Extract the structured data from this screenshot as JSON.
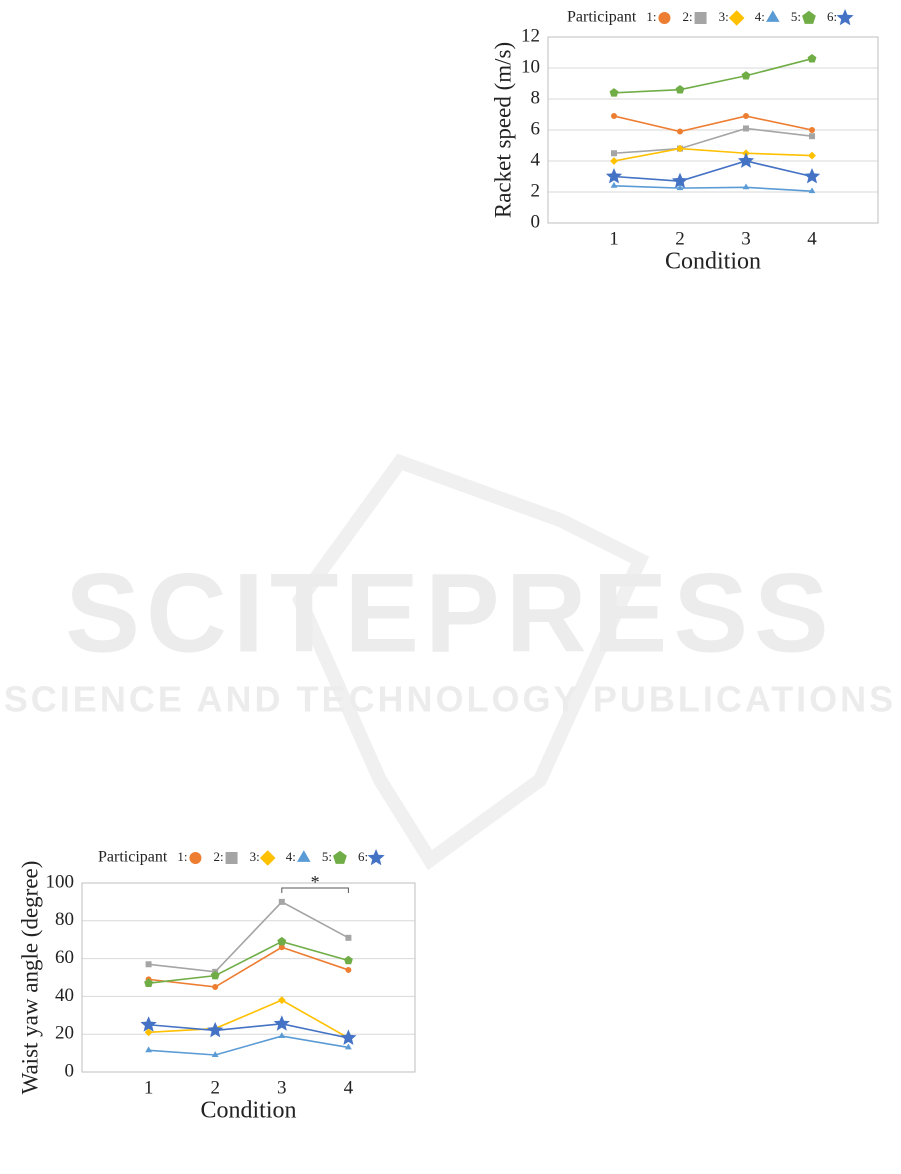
{
  "watermark": {
    "title": "SCITEPRESS",
    "subtitle": "SCIENCE AND TECHNOLOGY PUBLICATIONS"
  },
  "chart_data": [
    {
      "type": "line",
      "legend_title": "Participant",
      "x_label": "Condition",
      "y_label": "Racket speed (m/s)",
      "categories": [
        "1",
        "2",
        "3",
        "4"
      ],
      "ylim": [
        0,
        12
      ],
      "yticks": [
        0,
        2,
        4,
        6,
        8,
        10,
        12
      ],
      "grid": true,
      "series": [
        {
          "name": "1:",
          "color": "#ed7d31",
          "marker": "circle",
          "values": [
            6.9,
            5.9,
            6.9,
            6.0
          ]
        },
        {
          "name": "2:",
          "color": "#a5a5a5",
          "marker": "square",
          "values": [
            4.5,
            4.8,
            6.1,
            5.6
          ]
        },
        {
          "name": "3:",
          "color": "#ffc000",
          "marker": "diamond",
          "values": [
            4.0,
            4.8,
            4.5,
            4.35
          ]
        },
        {
          "name": "4:",
          "color": "#5b9bd5",
          "marker": "triangle",
          "values": [
            2.4,
            2.25,
            2.3,
            2.05
          ]
        },
        {
          "name": "5:",
          "color": "#70ad47",
          "marker": "pentagon",
          "values": [
            8.4,
            8.6,
            9.5,
            10.6
          ]
        },
        {
          "name": "6:",
          "color": "#4472c4",
          "marker": "star",
          "values": [
            3.0,
            2.7,
            4.0,
            3.0
          ]
        }
      ]
    },
    {
      "type": "line",
      "legend_title": "Participant",
      "x_label": "Condition",
      "y_label": "Waist yaw angle (degree)",
      "categories": [
        "1",
        "2",
        "3",
        "4"
      ],
      "ylim": [
        0,
        100
      ],
      "yticks": [
        0,
        20,
        40,
        60,
        80,
        100
      ],
      "grid": true,
      "annotations": [
        {
          "text": "*"
        }
      ],
      "series": [
        {
          "name": "1:",
          "color": "#ed7d31",
          "marker": "circle",
          "values": [
            49,
            45,
            66,
            54
          ]
        },
        {
          "name": "2:",
          "color": "#a5a5a5",
          "marker": "square",
          "values": [
            57,
            53,
            90,
            71
          ]
        },
        {
          "name": "3:",
          "color": "#ffc000",
          "marker": "diamond",
          "values": [
            21,
            23,
            38,
            18
          ]
        },
        {
          "name": "4:",
          "color": "#5b9bd5",
          "marker": "triangle",
          "values": [
            11.5,
            9,
            19,
            13
          ]
        },
        {
          "name": "5:",
          "color": "#70ad47",
          "marker": "pentagon",
          "values": [
            47,
            51,
            69,
            59
          ]
        },
        {
          "name": "6:",
          "color": "#4472c4",
          "marker": "star",
          "values": [
            25,
            22,
            25.5,
            18
          ]
        }
      ]
    }
  ]
}
